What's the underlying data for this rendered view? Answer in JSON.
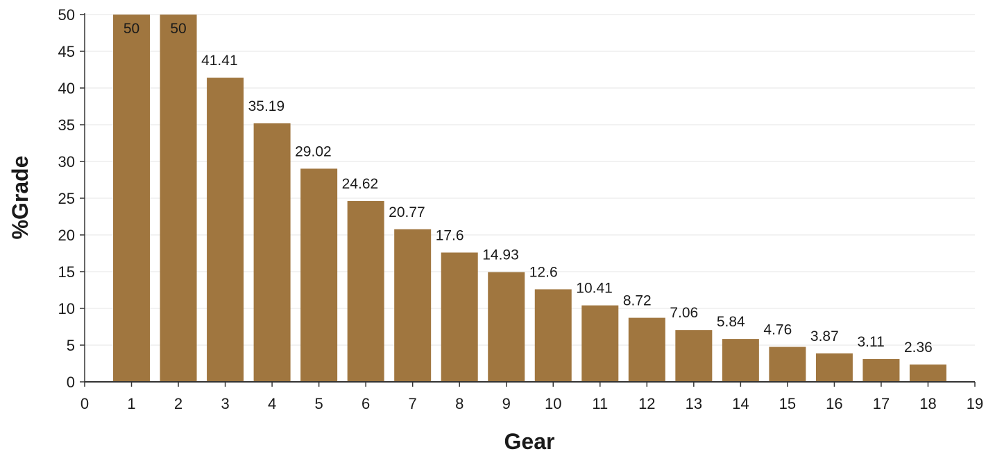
{
  "chart_data": {
    "type": "bar",
    "title": "",
    "xlabel": "Gear",
    "ylabel": "%Grade",
    "categories": [
      1,
      2,
      3,
      4,
      5,
      6,
      7,
      8,
      9,
      10,
      11,
      12,
      13,
      14,
      15,
      16,
      17,
      18
    ],
    "values": [
      50,
      50,
      41.41,
      35.19,
      29.02,
      24.62,
      20.77,
      17.6,
      14.93,
      12.6,
      10.41,
      8.72,
      7.06,
      5.84,
      4.76,
      3.87,
      3.11,
      2.36
    ],
    "data_labels": [
      "50",
      "50",
      "41.41",
      "35.19",
      "29.02",
      "24.62",
      "20.77",
      "17.6",
      "14.93",
      "12.6",
      "10.41",
      "8.72",
      "7.06",
      "5.84",
      "4.76",
      "3.87",
      "3.11",
      "2.36"
    ],
    "xlim": [
      0,
      19
    ],
    "ylim": [
      0,
      50
    ],
    "x_ticks": [
      "0",
      "1",
      "2",
      "3",
      "4",
      "5",
      "6",
      "7",
      "8",
      "9",
      "10",
      "11",
      "12",
      "13",
      "14",
      "15",
      "16",
      "17",
      "18",
      "19"
    ],
    "y_ticks": [
      "0",
      "5",
      "10",
      "15",
      "20",
      "25",
      "30",
      "35",
      "40",
      "45",
      "50"
    ],
    "grid": true,
    "bar_color": "#a0763f",
    "grid_color": "#e6e6e6",
    "axis_color": "#333333"
  }
}
